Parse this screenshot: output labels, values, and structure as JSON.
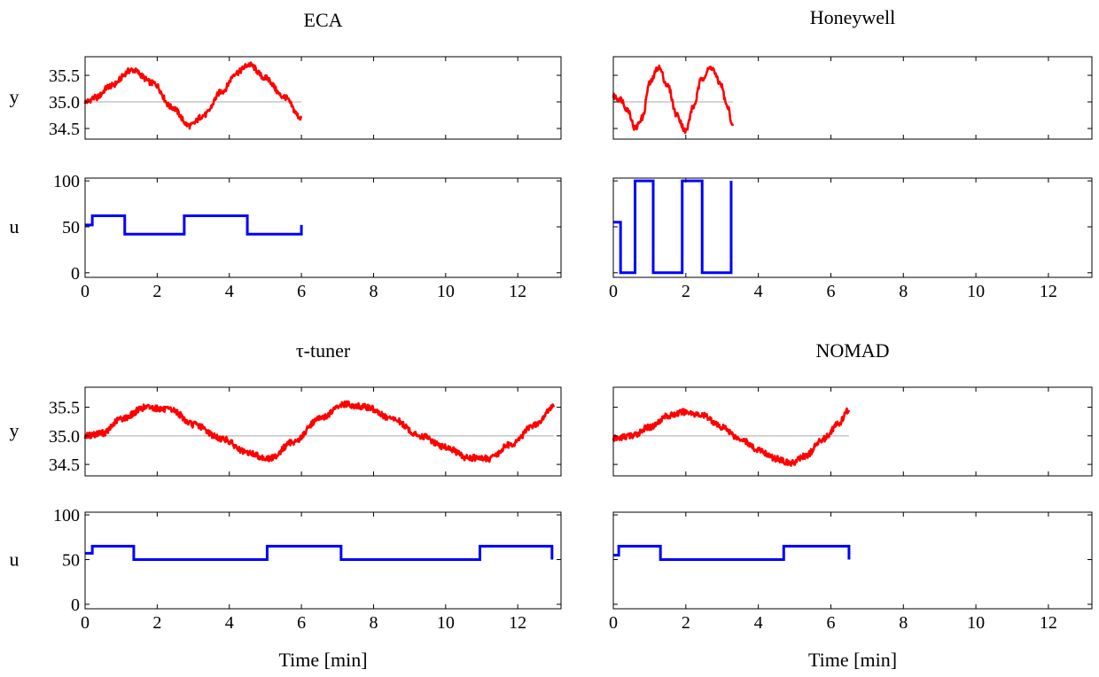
{
  "figure": {
    "xlabel": "Time [min]",
    "ylabel_top": "y",
    "ylabel_bottom": "u",
    "colors": {
      "y": "#ff0000",
      "u": "#0000ff",
      "setpoint": "#bbbbbb",
      "axes": "#000000"
    }
  },
  "chart_data": [
    {
      "type": "line",
      "title": "ECA",
      "xlim": [
        0,
        13.2
      ],
      "x_ticks": [
        0,
        2,
        4,
        6,
        8,
        10,
        12
      ],
      "y": {
        "ylabel": "y",
        "ylim": [
          34.3,
          35.85
        ],
        "ticks": [
          "35.5",
          "35.0",
          "34.5"
        ],
        "tick_values": [
          35.5,
          35.0,
          34.5
        ],
        "setpoint": 35.0,
        "series": [
          {
            "x": [
              0,
              0.3,
              0.7,
              1.3,
              1.9,
              2.4,
              2.9,
              3.3,
              3.8,
              4.2,
              4.55,
              5.0,
              5.5,
              6.0
            ],
            "values": [
              35.0,
              35.08,
              35.3,
              35.6,
              35.35,
              34.9,
              34.55,
              34.75,
              35.2,
              35.55,
              35.7,
              35.45,
              35.1,
              34.7
            ]
          }
        ]
      },
      "u": {
        "ylabel": "u",
        "ylim": [
          -5,
          103
        ],
        "ticks": [
          "100",
          "50",
          "0"
        ],
        "tick_values": [
          100,
          50,
          0
        ],
        "series": [
          {
            "x": [
              0,
              0.2,
              0.2,
              1.1,
              1.1,
              2.75,
              2.75,
              4.5,
              4.5,
              6.0,
              6.0
            ],
            "values": [
              52,
              52,
              62,
              62,
              42,
              42,
              62,
              62,
              42,
              42,
              52
            ]
          }
        ]
      }
    },
    {
      "type": "line",
      "title": "Honeywell",
      "xlim": [
        0,
        13.2
      ],
      "x_ticks": [
        0,
        2,
        4,
        6,
        8,
        10,
        12
      ],
      "y": {
        "ylabel": "",
        "ylim": [
          34.3,
          35.85
        ],
        "ticks": [],
        "tick_values": [],
        "setpoint": 35.0,
        "series": [
          {
            "x": [
              0,
              0.2,
              0.4,
              0.6,
              0.8,
              1.0,
              1.25,
              1.5,
              1.75,
              2.0,
              2.2,
              2.45,
              2.7,
              2.95,
              3.15,
              3.3
            ],
            "values": [
              35.1,
              35.05,
              34.85,
              34.5,
              34.7,
              35.35,
              35.65,
              35.3,
              34.75,
              34.45,
              34.9,
              35.45,
              35.65,
              35.35,
              34.9,
              34.55
            ]
          }
        ]
      },
      "u": {
        "ylabel": "",
        "ylim": [
          -5,
          103
        ],
        "ticks": [],
        "tick_values": [],
        "series": [
          {
            "x": [
              0,
              0.2,
              0.2,
              0.6,
              0.6,
              1.1,
              1.1,
              1.9,
              1.9,
              2.45,
              2.45,
              3.25,
              3.25
            ],
            "values": [
              55,
              55,
              0,
              0,
              100,
              100,
              0,
              0,
              100,
              100,
              0,
              0,
              100
            ]
          }
        ]
      }
    },
    {
      "type": "line",
      "title": "τ-tuner",
      "xlim": [
        0,
        13.2
      ],
      "x_ticks": [
        0,
        2,
        4,
        6,
        8,
        10,
        12
      ],
      "y": {
        "ylabel": "y",
        "ylim": [
          34.3,
          35.85
        ],
        "ticks": [
          "35.5",
          "35.0",
          "34.5"
        ],
        "tick_values": [
          35.5,
          35.0,
          34.5
        ],
        "setpoint": 35.0,
        "series": [
          {
            "x": [
              0,
              0.5,
              1.0,
              1.7,
              2.4,
              3.0,
              3.8,
              4.5,
              5.1,
              5.8,
              6.5,
              7.2,
              7.8,
              8.5,
              9.3,
              10.0,
              10.6,
              11.2,
              11.8,
              12.5,
              13.0
            ],
            "values": [
              35.0,
              35.05,
              35.3,
              35.5,
              35.45,
              35.2,
              34.95,
              34.7,
              34.6,
              34.9,
              35.3,
              35.55,
              35.5,
              35.3,
              35.0,
              34.8,
              34.62,
              34.6,
              34.85,
              35.2,
              35.5
            ]
          }
        ]
      },
      "u": {
        "ylabel": "u",
        "ylim": [
          -5,
          103
        ],
        "ticks": [
          "100",
          "50",
          "0"
        ],
        "tick_values": [
          100,
          50,
          0
        ],
        "series": [
          {
            "x": [
              0,
              0.2,
              0.2,
              1.35,
              1.35,
              5.05,
              5.05,
              7.1,
              7.1,
              10.95,
              10.95,
              12.95,
              12.95
            ],
            "values": [
              57,
              57,
              65,
              65,
              50,
              50,
              65,
              65,
              50,
              50,
              65,
              65,
              50
            ]
          }
        ]
      }
    },
    {
      "type": "line",
      "title": "NOMAD",
      "xlim": [
        0,
        13.2
      ],
      "x_ticks": [
        0,
        2,
        4,
        6,
        8,
        10,
        12
      ],
      "y": {
        "ylabel": "",
        "ylim": [
          34.3,
          35.85
        ],
        "ticks": [],
        "tick_values": [],
        "setpoint": 35.0,
        "series": [
          {
            "x": [
              0,
              0.5,
              1.0,
              1.5,
              2.0,
              2.5,
              3.0,
              3.5,
              4.0,
              4.5,
              4.9,
              5.3,
              5.8,
              6.2,
              6.5
            ],
            "values": [
              34.95,
              35.0,
              35.15,
              35.35,
              35.42,
              35.35,
              35.15,
              34.95,
              34.75,
              34.6,
              34.52,
              34.65,
              34.95,
              35.2,
              35.45
            ]
          }
        ]
      },
      "u": {
        "ylabel": "",
        "ylim": [
          -5,
          103
        ],
        "ticks": [],
        "tick_values": [],
        "series": [
          {
            "x": [
              0,
              0.15,
              0.15,
              1.3,
              1.3,
              4.7,
              4.7,
              6.5,
              6.5
            ],
            "values": [
              55,
              55,
              65,
              65,
              50,
              50,
              65,
              65,
              50
            ]
          }
        ]
      }
    }
  ]
}
